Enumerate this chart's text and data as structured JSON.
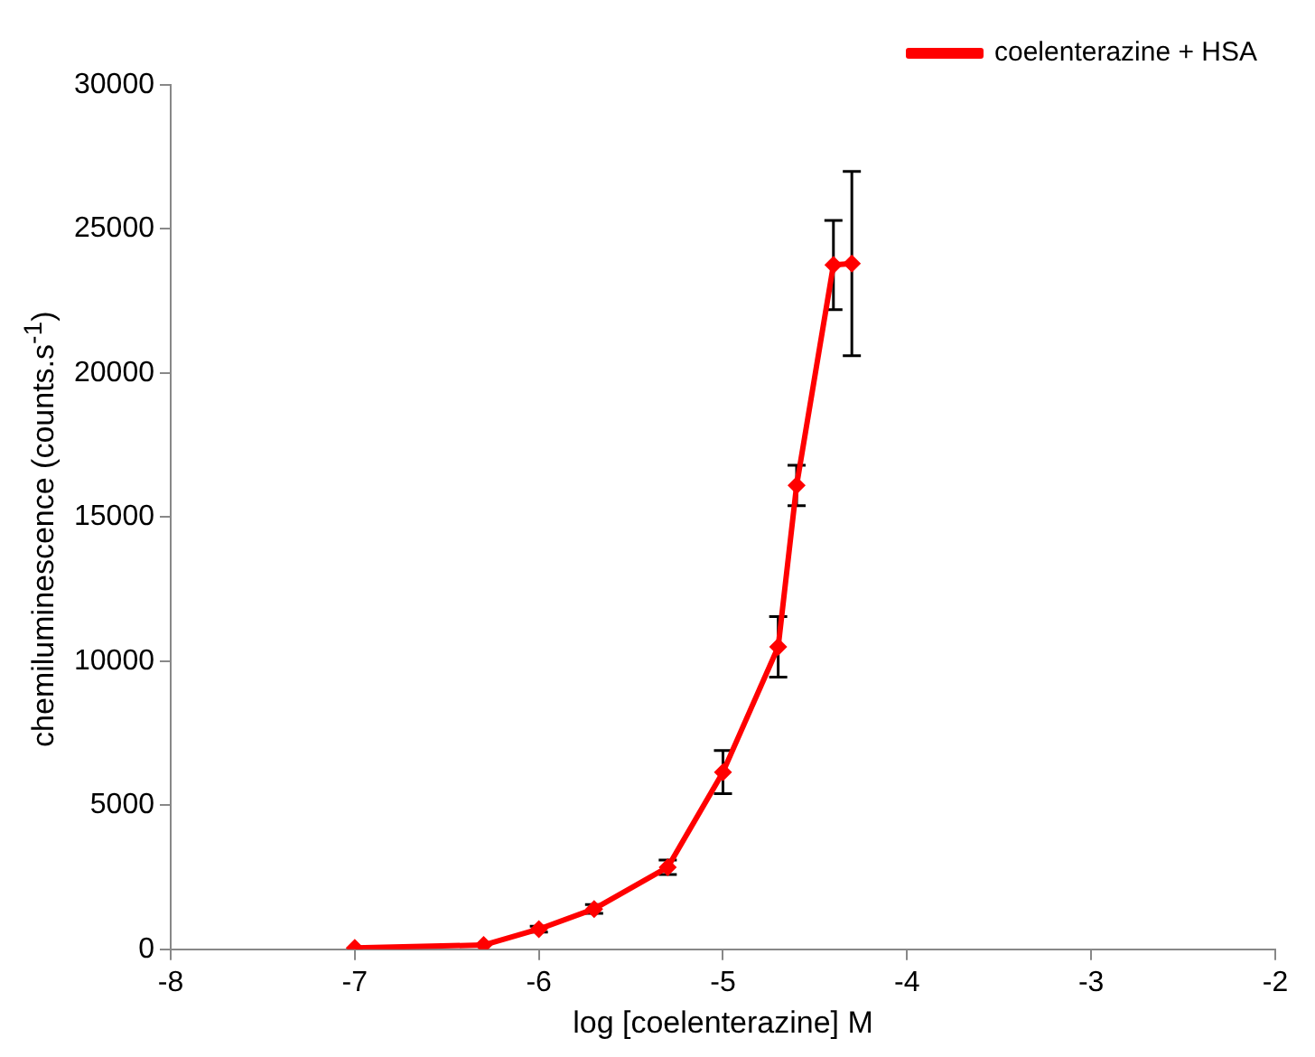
{
  "chart_data": {
    "type": "line",
    "xlabel": "log [coelenterazine] M",
    "ylabel": "chemiluminescence (counts.s$^{-1}$)",
    "x": [
      -7,
      -6.3,
      -6,
      -5.7,
      -5.3,
      -5,
      -4.7,
      -4.6,
      -4.4,
      -4.3
    ],
    "series": [
      {
        "name": "coelenterazine + HSA",
        "color": "#ff0000",
        "values": [
          50,
          150,
          700,
          1400,
          2850,
          6150,
          10500,
          16100,
          23750,
          23800
        ],
        "errors": [
          null,
          null,
          100,
          150,
          250,
          750,
          1050,
          700,
          1550,
          3200
        ]
      }
    ],
    "xlim": [
      -8,
      -2
    ],
    "xticks": [
      -8,
      -7,
      -6,
      -5,
      -4,
      -3,
      -2
    ],
    "ylim": [
      0,
      30000
    ],
    "yticks": [
      0,
      5000,
      10000,
      15000,
      20000,
      25000,
      30000
    ],
    "grid": false,
    "legend": "top right",
    "marker": "diamond",
    "line_style": "solid"
  }
}
